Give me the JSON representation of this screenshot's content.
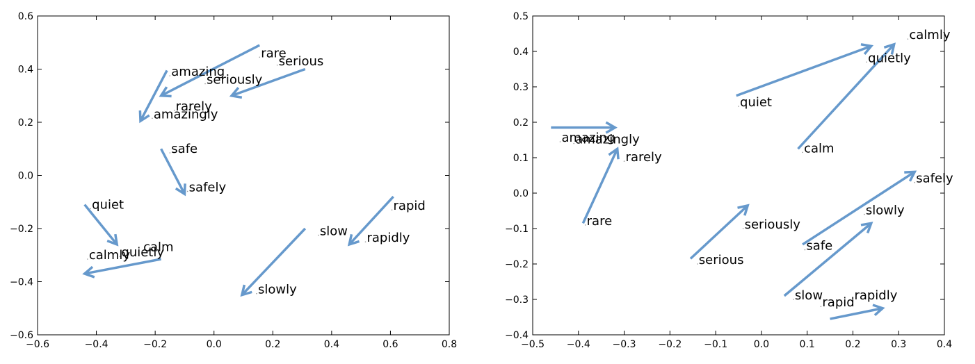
{
  "chart_data": [
    {
      "type": "scatter",
      "title": "",
      "xlabel": "",
      "ylabel": "",
      "xlim": [
        -0.6,
        0.8
      ],
      "ylim": [
        -0.6,
        0.6
      ],
      "xticks": [
        -0.6,
        -0.4,
        -0.2,
        0.0,
        0.2,
        0.4,
        0.6,
        0.8
      ],
      "yticks": [
        -0.6,
        -0.4,
        -0.2,
        0.0,
        0.2,
        0.4,
        0.6
      ],
      "xtick_labels": [
        "−0.6",
        "−0.4",
        "−0.2",
        "0.0",
        "0.2",
        "0.4",
        "0.6",
        "0.8"
      ],
      "ytick_labels": [
        "−0.6",
        "−0.4",
        "−0.2",
        "0.0",
        "0.2",
        "0.4",
        "0.6"
      ],
      "grid": false,
      "arrow_color": "#6699cc",
      "points": [
        {
          "label": "rare",
          "x": 0.155,
          "y": 0.445
        },
        {
          "label": "rarely",
          "x": -0.135,
          "y": 0.245
        },
        {
          "label": "serious",
          "x": 0.215,
          "y": 0.415
        },
        {
          "label": "seriously",
          "x": -0.03,
          "y": 0.345
        },
        {
          "label": "amazing",
          "x": -0.15,
          "y": 0.375
        },
        {
          "label": "amazingly",
          "x": -0.21,
          "y": 0.215
        },
        {
          "label": "safe",
          "x": -0.15,
          "y": 0.085
        },
        {
          "label": "safely",
          "x": -0.09,
          "y": -0.06
        },
        {
          "label": "quiet",
          "x": -0.42,
          "y": -0.125
        },
        {
          "label": "quietly",
          "x": -0.32,
          "y": -0.305
        },
        {
          "label": "calm",
          "x": -0.245,
          "y": -0.285
        },
        {
          "label": "calmly",
          "x": -0.43,
          "y": -0.315
        },
        {
          "label": "rapid",
          "x": 0.605,
          "y": -0.13
        },
        {
          "label": "rapidly",
          "x": 0.515,
          "y": -0.25
        },
        {
          "label": "slow",
          "x": 0.355,
          "y": -0.225
        },
        {
          "label": "slowly",
          "x": 0.145,
          "y": -0.445
        }
      ],
      "arrows": [
        {
          "from": [
            0.155,
            0.49
          ],
          "to": [
            -0.18,
            0.3
          ]
        },
        {
          "from": [
            0.31,
            0.4
          ],
          "to": [
            0.06,
            0.3
          ]
        },
        {
          "from": [
            -0.16,
            0.395
          ],
          "to": [
            -0.25,
            0.205
          ]
        },
        {
          "from": [
            -0.18,
            0.1
          ],
          "to": [
            -0.1,
            -0.07
          ]
        },
        {
          "from": [
            -0.44,
            -0.11
          ],
          "to": [
            -0.33,
            -0.26
          ]
        },
        {
          "from": [
            -0.18,
            -0.315
          ],
          "to": [
            -0.44,
            -0.37
          ]
        },
        {
          "from": [
            0.61,
            -0.08
          ],
          "to": [
            0.46,
            -0.26
          ]
        },
        {
          "from": [
            0.31,
            -0.2
          ],
          "to": [
            0.095,
            -0.45
          ]
        }
      ]
    },
    {
      "type": "scatter",
      "title": "",
      "xlabel": "",
      "ylabel": "",
      "xlim": [
        -0.5,
        0.4
      ],
      "ylim": [
        -0.4,
        0.5
      ],
      "xticks": [
        -0.5,
        -0.4,
        -0.3,
        -0.2,
        -0.1,
        0.0,
        0.1,
        0.2,
        0.3,
        0.4
      ],
      "yticks": [
        -0.4,
        -0.3,
        -0.2,
        -0.1,
        0.0,
        0.1,
        0.2,
        0.3,
        0.4,
        0.5
      ],
      "xtick_labels": [
        "−0.5",
        "−0.4",
        "−0.3",
        "−0.2",
        "−0.1",
        "0.0",
        "0.1",
        "0.2",
        "0.3",
        "0.4"
      ],
      "ytick_labels": [
        "−0.4",
        "−0.3",
        "−0.2",
        "−0.1",
        "0.0",
        "0.1",
        "0.2",
        "0.3",
        "0.4",
        "0.5"
      ],
      "grid": false,
      "arrow_color": "#6699cc",
      "points": [
        {
          "label": "calmly",
          "x": 0.32,
          "y": 0.435
        },
        {
          "label": "quietly",
          "x": 0.23,
          "y": 0.37
        },
        {
          "label": "quiet",
          "x": -0.05,
          "y": 0.245
        },
        {
          "label": "amazing",
          "x": -0.44,
          "y": 0.145
        },
        {
          "label": "amazingly",
          "x": -0.41,
          "y": 0.14
        },
        {
          "label": "rarely",
          "x": -0.3,
          "y": 0.09
        },
        {
          "label": "calm",
          "x": 0.09,
          "y": 0.115
        },
        {
          "label": "safely",
          "x": 0.335,
          "y": 0.03
        },
        {
          "label": "slowly",
          "x": 0.225,
          "y": -0.06
        },
        {
          "label": "rare",
          "x": -0.385,
          "y": -0.09
        },
        {
          "label": "seriously",
          "x": -0.04,
          "y": -0.1
        },
        {
          "label": "safe",
          "x": 0.095,
          "y": -0.16
        },
        {
          "label": "serious",
          "x": -0.14,
          "y": -0.2
        },
        {
          "label": "slow",
          "x": 0.07,
          "y": -0.3
        },
        {
          "label": "rapid",
          "x": 0.13,
          "y": -0.32
        },
        {
          "label": "rapidly",
          "x": 0.2,
          "y": -0.3
        }
      ],
      "arrows": [
        {
          "from": [
            -0.055,
            0.275
          ],
          "to": [
            0.24,
            0.415
          ]
        },
        {
          "from": [
            0.08,
            0.125
          ],
          "to": [
            0.29,
            0.42
          ]
        },
        {
          "from": [
            -0.46,
            0.185
          ],
          "to": [
            -0.32,
            0.185
          ]
        },
        {
          "from": [
            -0.39,
            -0.085
          ],
          "to": [
            -0.315,
            0.125
          ]
        },
        {
          "from": [
            -0.155,
            -0.185
          ],
          "to": [
            -0.03,
            -0.035
          ]
        },
        {
          "from": [
            0.09,
            -0.145
          ],
          "to": [
            0.335,
            0.06
          ]
        },
        {
          "from": [
            0.05,
            -0.29
          ],
          "to": [
            0.24,
            -0.085
          ]
        },
        {
          "from": [
            0.15,
            -0.355
          ],
          "to": [
            0.265,
            -0.325
          ]
        }
      ]
    }
  ]
}
